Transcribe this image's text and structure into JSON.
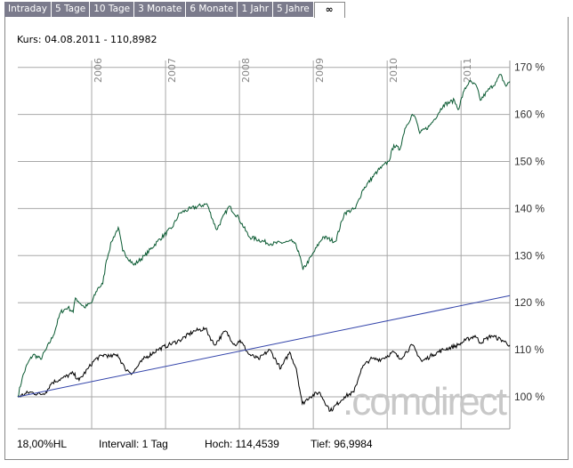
{
  "tabs": [
    {
      "label": "Intraday"
    },
    {
      "label": "5 Tage"
    },
    {
      "label": "10 Tage"
    },
    {
      "label": "3 Monate"
    },
    {
      "label": "6 Monate"
    },
    {
      "label": "1 Jahr"
    },
    {
      "label": "5 Jahre"
    },
    {
      "label": "∞",
      "active": true
    }
  ],
  "kurs": "Kurs: 04.08.2011 - 110,8982",
  "footer": {
    "scale": "18,00%HL",
    "interval": "Intervall: 1 Tag",
    "high": "Hoch: 114,4539",
    "low": "Tief: 96,9984"
  },
  "watermark": ".comdirect",
  "chart_data": {
    "type": "line",
    "xlim": [
      2005.0,
      2011.66
    ],
    "ylim": [
      93,
      172
    ],
    "x_ticks": [
      {
        "v": 2006,
        "label": "2006"
      },
      {
        "v": 2007,
        "label": "2007"
      },
      {
        "v": 2008,
        "label": "2008"
      },
      {
        "v": 2009,
        "label": "2009"
      },
      {
        "v": 2010,
        "label": "2010"
      },
      {
        "v": 2011,
        "label": "2011"
      }
    ],
    "y_ticks": [
      {
        "v": 100,
        "label": "100 %"
      },
      {
        "v": 110,
        "label": "110 %"
      },
      {
        "v": 120,
        "label": "120 %"
      },
      {
        "v": 130,
        "label": "130 %"
      },
      {
        "v": 140,
        "label": "140 %"
      },
      {
        "v": 150,
        "label": "150 %"
      },
      {
        "v": 160,
        "label": "160 %"
      },
      {
        "v": 170,
        "label": "170 %"
      }
    ],
    "grid": true,
    "series": [
      {
        "name": "benchmark",
        "color": "#0a5a32",
        "points": [
          [
            2005.0,
            100
          ],
          [
            2005.06,
            104
          ],
          [
            2005.13,
            107
          ],
          [
            2005.21,
            109
          ],
          [
            2005.31,
            108
          ],
          [
            2005.38,
            110
          ],
          [
            2005.48,
            113
          ],
          [
            2005.58,
            118
          ],
          [
            2005.68,
            119
          ],
          [
            2005.75,
            118
          ],
          [
            2005.78,
            121
          ],
          [
            2005.9,
            119
          ],
          [
            2006.0,
            120
          ],
          [
            2006.08,
            123
          ],
          [
            2006.15,
            124
          ],
          [
            2006.2,
            129
          ],
          [
            2006.27,
            133
          ],
          [
            2006.36,
            136
          ],
          [
            2006.42,
            131
          ],
          [
            2006.57,
            128
          ],
          [
            2006.72,
            130
          ],
          [
            2006.89,
            133
          ],
          [
            2007.09,
            136
          ],
          [
            2007.19,
            139
          ],
          [
            2007.34,
            140
          ],
          [
            2007.56,
            141
          ],
          [
            2007.69,
            135.5
          ],
          [
            2007.86,
            140.5
          ],
          [
            2007.99,
            138
          ],
          [
            2008.13,
            134
          ],
          [
            2008.43,
            132.5
          ],
          [
            2008.73,
            133
          ],
          [
            2008.8,
            131
          ],
          [
            2008.86,
            127
          ],
          [
            2008.98,
            130
          ],
          [
            2009.13,
            134
          ],
          [
            2009.3,
            133
          ],
          [
            2009.42,
            139
          ],
          [
            2009.57,
            140
          ],
          [
            2009.67,
            144
          ],
          [
            2009.87,
            148
          ],
          [
            2010.02,
            150
          ],
          [
            2010.09,
            153.5
          ],
          [
            2010.17,
            152.5
          ],
          [
            2010.24,
            157
          ],
          [
            2010.34,
            160
          ],
          [
            2010.39,
            159
          ],
          [
            2010.44,
            156
          ],
          [
            2010.57,
            157.5
          ],
          [
            2010.64,
            159
          ],
          [
            2010.76,
            162
          ],
          [
            2010.91,
            163
          ],
          [
            2010.96,
            161
          ],
          [
            2011.04,
            165
          ],
          [
            2011.11,
            167
          ],
          [
            2011.21,
            166
          ],
          [
            2011.26,
            163
          ],
          [
            2011.36,
            165
          ],
          [
            2011.48,
            167
          ],
          [
            2011.53,
            168.5
          ],
          [
            2011.61,
            166
          ],
          [
            2011.66,
            167
          ]
        ]
      },
      {
        "name": "price",
        "color": "#000000",
        "points": [
          [
            2005.0,
            100
          ],
          [
            2005.16,
            101
          ],
          [
            2005.31,
            100.5
          ],
          [
            2005.38,
            101
          ],
          [
            2005.46,
            103
          ],
          [
            2005.61,
            104
          ],
          [
            2005.75,
            105
          ],
          [
            2005.83,
            103.5
          ],
          [
            2005.95,
            106
          ],
          [
            2006.05,
            108
          ],
          [
            2006.18,
            109
          ],
          [
            2006.25,
            108.5
          ],
          [
            2006.35,
            109
          ],
          [
            2006.45,
            106
          ],
          [
            2006.55,
            105
          ],
          [
            2006.7,
            108
          ],
          [
            2006.89,
            110
          ],
          [
            2007.04,
            111
          ],
          [
            2007.19,
            112
          ],
          [
            2007.39,
            114
          ],
          [
            2007.54,
            114.5
          ],
          [
            2007.66,
            111
          ],
          [
            2007.81,
            114
          ],
          [
            2007.94,
            111
          ],
          [
            2008.01,
            112
          ],
          [
            2008.13,
            109
          ],
          [
            2008.26,
            108
          ],
          [
            2008.41,
            110
          ],
          [
            2008.56,
            106
          ],
          [
            2008.68,
            109.5
          ],
          [
            2008.77,
            106
          ],
          [
            2008.85,
            98.5
          ],
          [
            2008.95,
            100
          ],
          [
            2009.08,
            101
          ],
          [
            2009.23,
            97
          ],
          [
            2009.42,
            100
          ],
          [
            2009.55,
            101
          ],
          [
            2009.65,
            106
          ],
          [
            2009.77,
            108
          ],
          [
            2009.92,
            108
          ],
          [
            2010.09,
            109.5
          ],
          [
            2010.17,
            108
          ],
          [
            2010.34,
            111
          ],
          [
            2010.47,
            107.5
          ],
          [
            2010.62,
            109
          ],
          [
            2010.76,
            110
          ],
          [
            2010.96,
            111
          ],
          [
            2011.06,
            112
          ],
          [
            2011.19,
            113
          ],
          [
            2011.26,
            111.5
          ],
          [
            2011.41,
            113
          ],
          [
            2011.56,
            112
          ],
          [
            2011.66,
            111
          ]
        ]
      },
      {
        "name": "trend",
        "color": "#3344aa",
        "points": [
          [
            2005.0,
            100
          ],
          [
            2011.66,
            121.5
          ]
        ]
      }
    ]
  }
}
